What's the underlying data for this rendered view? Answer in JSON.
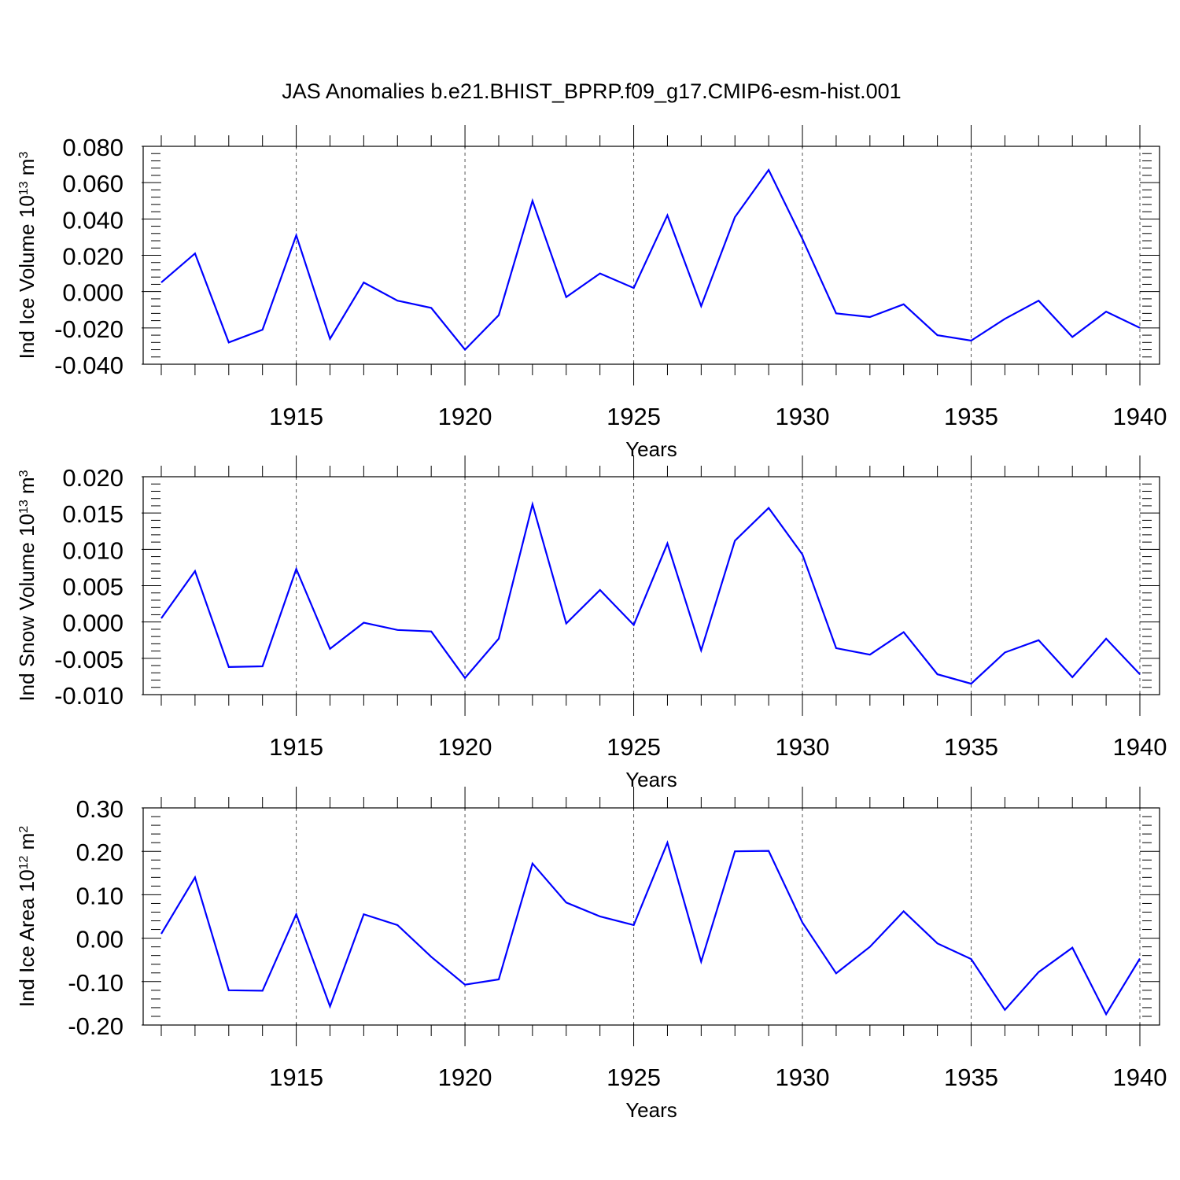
{
  "figure_title": "JAS Anomalies b.e21.BHIST_BPRP.f09_g17.CMIP6-esm-hist.001",
  "series_color": "#0000ff",
  "chart_data": [
    {
      "type": "line",
      "ylabel": {
        "prefix": "Ind Ice Volume 10",
        "exp": "13",
        "unit": " m",
        "unit_exp": "3"
      },
      "xlabel": "Years",
      "xlim": [
        1911,
        1940
      ],
      "ylim": [
        -0.04,
        0.08
      ],
      "x_ticks": [
        "1915",
        "1920",
        "1925",
        "1930",
        "1935",
        "1940"
      ],
      "y_ticks": [
        "0.080",
        "0.060",
        "0.040",
        "0.020",
        "0.000",
        "-0.020",
        "-0.040"
      ],
      "grid": "x-major-dashed",
      "x": [
        1911,
        1912,
        1913,
        1914,
        1915,
        1916,
        1917,
        1918,
        1919,
        1920,
        1921,
        1922,
        1923,
        1924,
        1925,
        1926,
        1927,
        1928,
        1929,
        1930,
        1931,
        1932,
        1933,
        1934,
        1935,
        1936,
        1937,
        1938,
        1939,
        1940
      ],
      "values": [
        0.005,
        0.021,
        -0.028,
        -0.021,
        0.031,
        -0.026,
        0.005,
        -0.005,
        -0.009,
        -0.032,
        -0.013,
        0.05,
        -0.003,
        0.01,
        0.002,
        0.042,
        -0.008,
        0.041,
        0.067,
        0.029,
        -0.012,
        -0.014,
        -0.007,
        -0.024,
        -0.027,
        -0.015,
        -0.005,
        -0.025,
        -0.011,
        -0.02
      ]
    },
    {
      "type": "line",
      "ylabel": {
        "prefix": "Ind Snow Volume 10",
        "exp": "13",
        "unit": " m",
        "unit_exp": "3"
      },
      "xlabel": "Years",
      "xlim": [
        1911,
        1940
      ],
      "ylim": [
        -0.01,
        0.02
      ],
      "x_ticks": [
        "1915",
        "1920",
        "1925",
        "1930",
        "1935",
        "1940"
      ],
      "y_ticks": [
        "0.020",
        "0.015",
        "0.010",
        "0.005",
        "0.000",
        "-0.005",
        "-0.010"
      ],
      "grid": "x-major-dashed",
      "x": [
        1911,
        1912,
        1913,
        1914,
        1915,
        1916,
        1917,
        1918,
        1919,
        1920,
        1921,
        1922,
        1923,
        1924,
        1925,
        1926,
        1927,
        1928,
        1929,
        1930,
        1931,
        1932,
        1933,
        1934,
        1935,
        1936,
        1937,
        1938,
        1939,
        1940
      ],
      "values": [
        0.0005,
        0.007,
        -0.0062,
        -0.0061,
        0.0073,
        -0.0037,
        -0.0001,
        -0.0011,
        -0.0013,
        -0.0077,
        -0.0023,
        0.0162,
        -0.0002,
        0.0044,
        -0.0004,
        0.0108,
        -0.0039,
        0.0112,
        0.0157,
        0.0093,
        -0.0036,
        -0.0045,
        -0.0014,
        -0.0072,
        -0.0085,
        -0.0042,
        -0.0025,
        -0.0076,
        -0.0023,
        -0.0072
      ]
    },
    {
      "type": "line",
      "ylabel": {
        "prefix": "Ind Ice Area 10",
        "exp": "12",
        "unit": " m",
        "unit_exp": "2"
      },
      "xlabel": "Years",
      "xlim": [
        1911,
        1940
      ],
      "ylim": [
        -0.2,
        0.3
      ],
      "x_ticks": [
        "1915",
        "1920",
        "1925",
        "1930",
        "1935",
        "1940"
      ],
      "y_ticks": [
        "0.30",
        "0.20",
        "0.10",
        "0.00",
        "-0.10",
        "-0.20"
      ],
      "grid": "x-major-dashed",
      "x": [
        1911,
        1912,
        1913,
        1914,
        1915,
        1916,
        1917,
        1918,
        1919,
        1920,
        1921,
        1922,
        1923,
        1924,
        1925,
        1926,
        1927,
        1928,
        1929,
        1930,
        1931,
        1932,
        1933,
        1934,
        1935,
        1936,
        1937,
        1938,
        1939,
        1940
      ],
      "values": [
        0.01,
        0.14,
        -0.12,
        -0.121,
        0.055,
        -0.157,
        0.055,
        0.03,
        -0.043,
        -0.107,
        -0.095,
        0.172,
        0.082,
        0.05,
        0.03,
        0.22,
        -0.054,
        0.2,
        0.201,
        0.036,
        -0.081,
        -0.02,
        0.062,
        -0.012,
        -0.048,
        -0.165,
        -0.078,
        -0.022,
        -0.175,
        -0.047
      ]
    }
  ]
}
